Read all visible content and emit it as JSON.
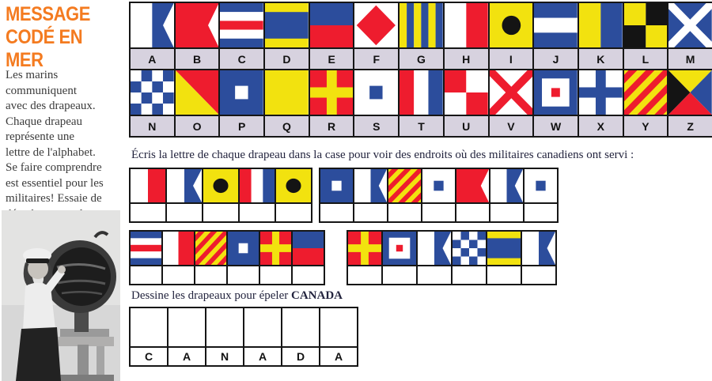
{
  "sidebar": {
    "title": "MESSAGE\nCODÉ EN MER",
    "intro": "Les marins\ncommuniquent\navec des drapeaux.\nChaque drapeau\nreprésente une\nlettre de l'alphabet.\nSe faire comprendre\nest essentiel pour les\nmilitaires! Essaie de\ndécoder ce que les\ndrapeaux signifient.",
    "photo_icon": "sailor-with-signal-lamp-photo"
  },
  "alphabet": {
    "rows": [
      [
        "A",
        "B",
        "C",
        "D",
        "E",
        "F",
        "G",
        "H",
        "I",
        "J",
        "K",
        "L",
        "M"
      ],
      [
        "N",
        "O",
        "P",
        "Q",
        "R",
        "S",
        "T",
        "U",
        "V",
        "W",
        "X",
        "Y",
        "Z"
      ]
    ]
  },
  "puzzle": {
    "instruction": "Écris la lettre de chaque drapeau dans la case pour voir des endroits où des militaires canadiens ont servi :",
    "rows": [
      {
        "groups": [
          {
            "letters": [
              "H",
              "A",
              "I",
              "T",
              "I"
            ]
          },
          {
            "letters": [
              "P",
              "A",
              "Y",
              "S",
              "B",
              "A",
              "S"
            ]
          }
        ]
      },
      {
        "groups": [
          {
            "letters": [
              "C",
              "H",
              "Y",
              "P",
              "R",
              "E"
            ]
          },
          {
            "letters": [
              "R",
              "W",
              "A",
              "N",
              "D",
              "A"
            ]
          }
        ]
      }
    ]
  },
  "canada": {
    "instruction_prefix": "Dessine les drapeaux pour épeler ",
    "instruction_word": "CANADA",
    "letters": [
      "C",
      "A",
      "N",
      "A",
      "D",
      "A"
    ]
  },
  "colors": {
    "red": "#ee1c2e",
    "blue": "#2c4d9c",
    "yellow": "#f2e20f",
    "flag_black": "#141414",
    "label_bg": "#d7d2df",
    "title_orange": "#f47b20",
    "grid_line": "#161616"
  }
}
